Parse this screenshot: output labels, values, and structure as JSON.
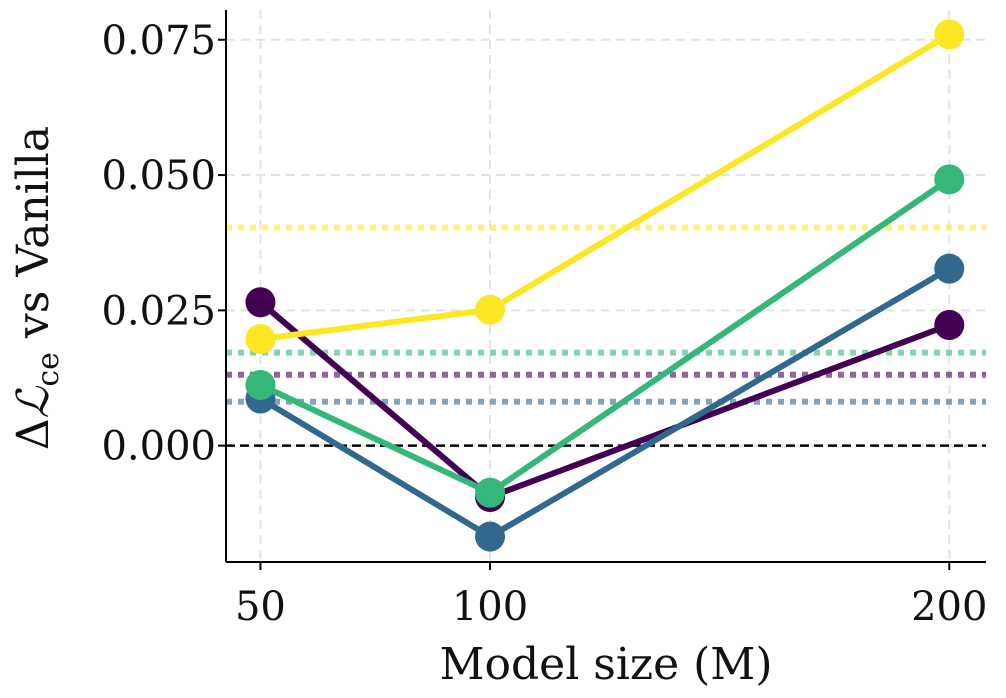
{
  "chart_data": {
    "type": "line",
    "xlabel": "Model size (M)",
    "ylabel": {
      "prefix": "Δ",
      "symbol": "ℒ",
      "subscript": "ce",
      "suffix": " vs Vanilla"
    },
    "x": [
      50,
      100,
      200
    ],
    "x_ticks": [
      50,
      100,
      200
    ],
    "x_tick_labels": [
      "50",
      "100",
      "200"
    ],
    "xlim": [
      42.5,
      208
    ],
    "y_ticks": [
      0.0,
      0.025,
      0.05,
      0.075
    ],
    "y_tick_labels": [
      "0.000",
      "0.025",
      "0.050",
      "0.075"
    ],
    "ylim": [
      -0.0215,
      0.0805
    ],
    "grid": true,
    "series": [
      {
        "color": "#440154",
        "values": [
          0.0265,
          -0.0095,
          0.0223
        ],
        "reference": 0.0131
      },
      {
        "color": "#31688e",
        "values": [
          0.0087,
          -0.0168,
          0.0327
        ],
        "reference": 0.0081
      },
      {
        "color": "#35b779",
        "values": [
          0.0112,
          -0.0087,
          0.0492
        ],
        "reference": 0.0172
      },
      {
        "color": "#fde725",
        "values": [
          0.0197,
          0.0251,
          0.076
        ],
        "reference": 0.0403
      }
    ],
    "baseline": 0.0
  }
}
